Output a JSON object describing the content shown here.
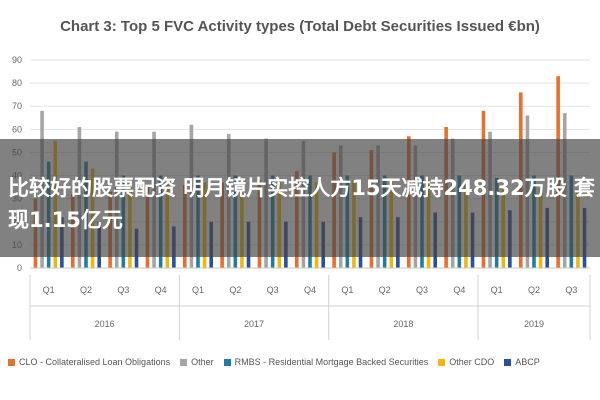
{
  "overlay": {
    "text": "比较好的股票配资 明月镜片实控人方15天减持248.32万股 套现1.15亿元"
  },
  "chart_data": {
    "type": "bar",
    "title": "Chart 3: Top 5 FVC Activity types (Total Debt Securities Issued €bn)",
    "categories": [
      "Q1",
      "Q2",
      "Q3",
      "Q4",
      "Q1",
      "Q2",
      "Q3",
      "Q4",
      "Q1",
      "Q2",
      "Q3",
      "Q4",
      "Q1",
      "Q2",
      "Q3"
    ],
    "year_groups": [
      {
        "label": "2016",
        "span": 4
      },
      {
        "label": "2017",
        "span": 4
      },
      {
        "label": "2018",
        "span": 4
      },
      {
        "label": "2019",
        "span": 3
      }
    ],
    "ylim": [
      0,
      90
    ],
    "yticks": [
      "0",
      "10",
      "20",
      "30",
      "40",
      "50",
      "60",
      "70",
      "80",
      "90"
    ],
    "grid": true,
    "legend_position": "bottom",
    "series": [
      {
        "name": "CLO - Collateralised Loan Obligations",
        "color": "#e8702a",
        "values": [
          30,
          32,
          33,
          35,
          36,
          37,
          38,
          42,
          50,
          51,
          57,
          61,
          68,
          76,
          83
        ]
      },
      {
        "name": "Other",
        "color": "#a5a5a5",
        "values": [
          68,
          61,
          59,
          59,
          62,
          58,
          56,
          55,
          53,
          53,
          53,
          56,
          59,
          66,
          67
        ]
      },
      {
        "name": "RMBS - Residential Mortgage Backed Securities",
        "color": "#1f7fa3",
        "values": [
          46,
          46,
          40,
          40,
          40,
          40,
          40,
          40,
          40,
          40,
          40,
          40,
          39,
          40,
          40
        ]
      },
      {
        "name": "Other CDO",
        "color": "#f2b900",
        "values": [
          55,
          43,
          37,
          37,
          37,
          37,
          37,
          37,
          38,
          38,
          38,
          38,
          34,
          34,
          34
        ]
      },
      {
        "name": "ABCP",
        "color": "#2a4f9c",
        "values": [
          22,
          20,
          17,
          18,
          20,
          20,
          20,
          20,
          22,
          22,
          24,
          24,
          25,
          26,
          26
        ]
      }
    ]
  }
}
